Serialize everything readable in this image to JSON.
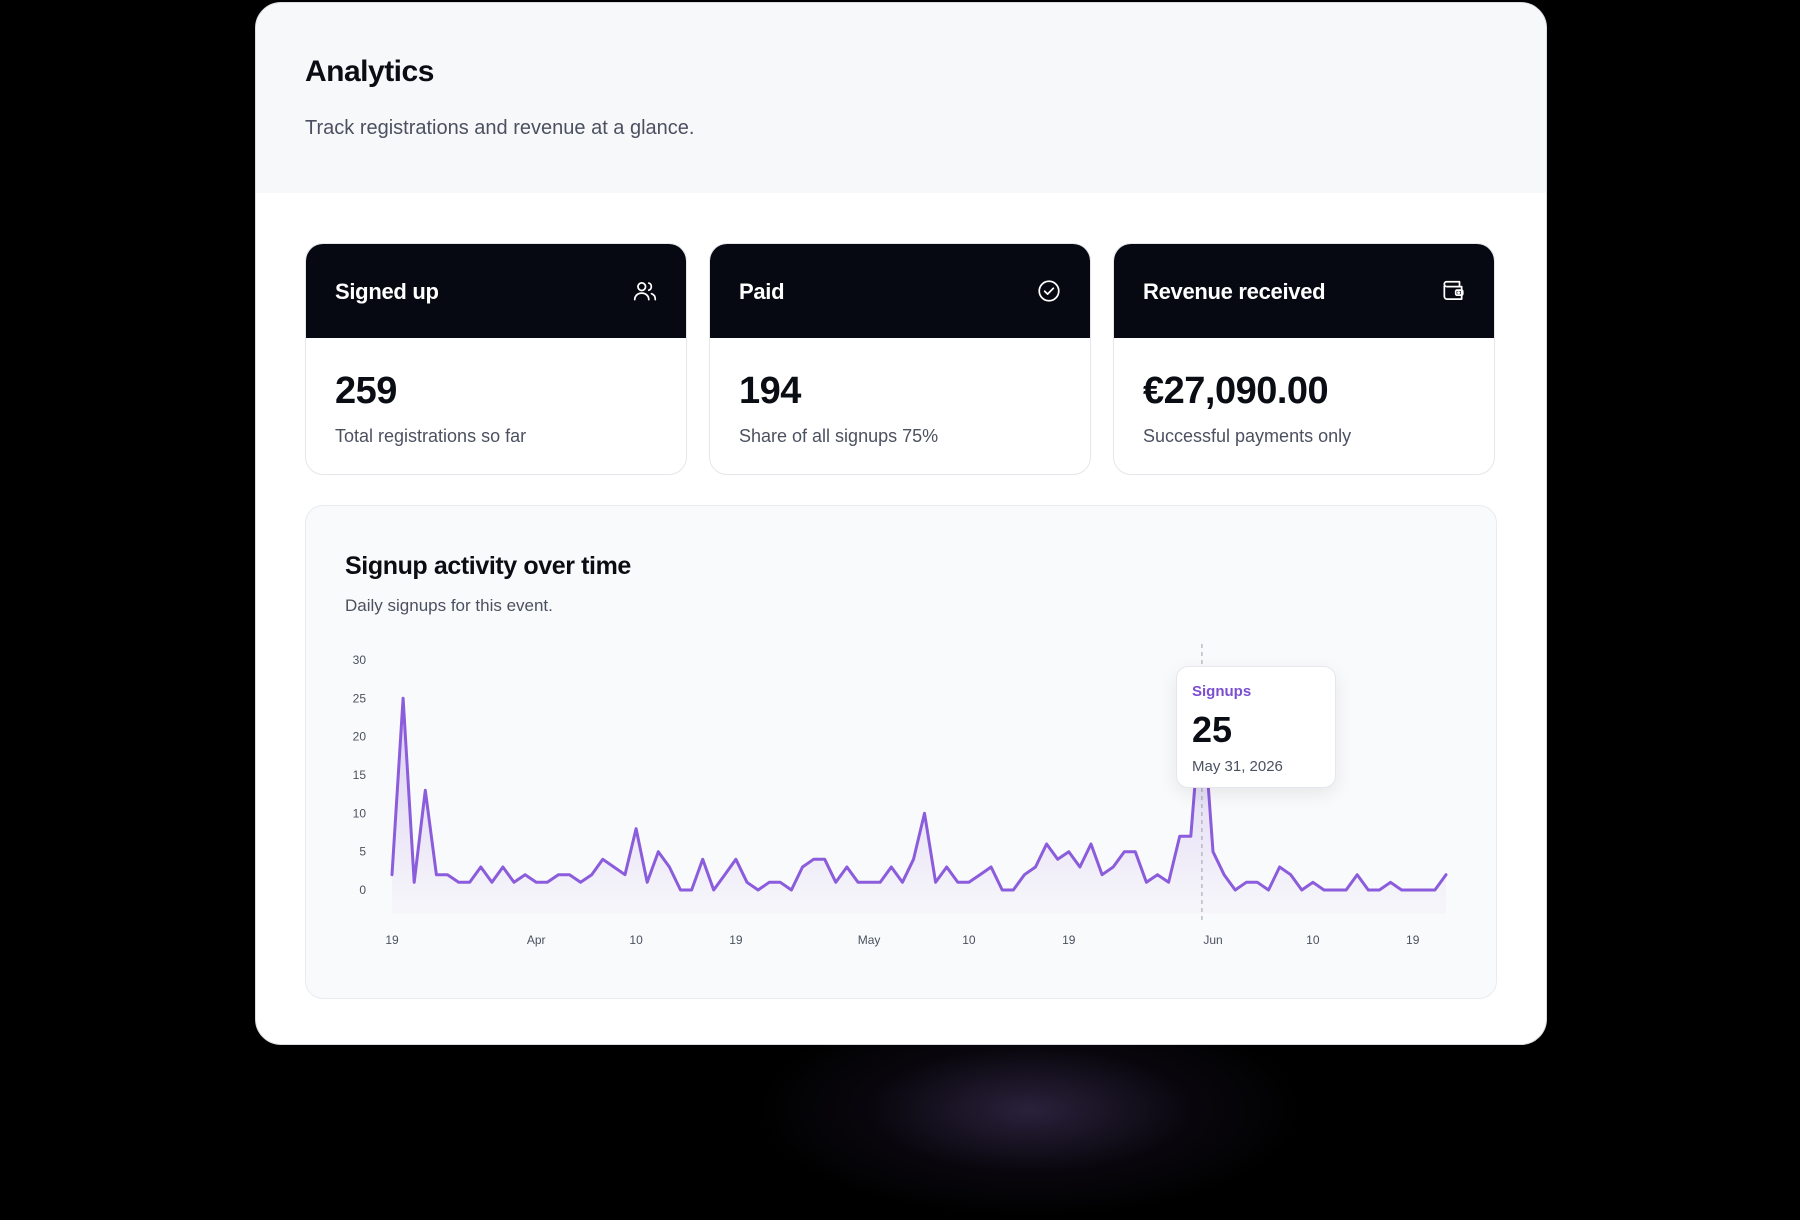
{
  "header": {
    "title": "Analytics",
    "subtitle": "Track registrations and revenue at a glance."
  },
  "stats": [
    {
      "label": "Signed up",
      "icon": "users-icon",
      "value": "259",
      "caption": "Total registrations so far"
    },
    {
      "label": "Paid",
      "icon": "check-badge-icon",
      "value": "194",
      "caption": "Share of all signups 75%"
    },
    {
      "label": "Revenue received",
      "icon": "wallet-icon",
      "value": "€27,090.00",
      "caption": "Successful payments only"
    }
  ],
  "chart": {
    "title": "Signup activity over time",
    "subtitle": "Daily signups for this event.",
    "tooltip": {
      "label": "Signups",
      "value": "25",
      "date": "May 31, 2026"
    }
  },
  "chart_data": {
    "type": "area",
    "title": "Signup activity over time",
    "series": [
      {
        "name": "Signups",
        "values": [
          2,
          25,
          1,
          13,
          2,
          2,
          1,
          1,
          3,
          1,
          3,
          1,
          2,
          1,
          1,
          2,
          2,
          1,
          2,
          4,
          3,
          2,
          8,
          1,
          5,
          3,
          0,
          0,
          4,
          0,
          2,
          4,
          1,
          0,
          1,
          1,
          0,
          3,
          4,
          4,
          1,
          3,
          1,
          1,
          1,
          3,
          1,
          4,
          10,
          1,
          3,
          1,
          1,
          2,
          3,
          0,
          0,
          2,
          3,
          6,
          4,
          5,
          3,
          6,
          2,
          3,
          5,
          5,
          1,
          2,
          1,
          7,
          7,
          25,
          5,
          2,
          0,
          1,
          1,
          0,
          3,
          2,
          0,
          1,
          0,
          0,
          0,
          2,
          0,
          0,
          1,
          0,
          0,
          0,
          0,
          2
        ]
      }
    ],
    "x_start": "2026-03-19",
    "x_ticks": [
      "19",
      "Apr",
      "10",
      "19",
      "May",
      "10",
      "19",
      "Jun",
      "10",
      "19"
    ],
    "y_ticks": [
      0,
      5,
      10,
      15,
      20,
      25,
      30
    ],
    "ylim": [
      0,
      30
    ],
    "highlight": {
      "date": "2026-05-31",
      "value": 25
    },
    "grid": false,
    "color": "#8b5cdb"
  }
}
